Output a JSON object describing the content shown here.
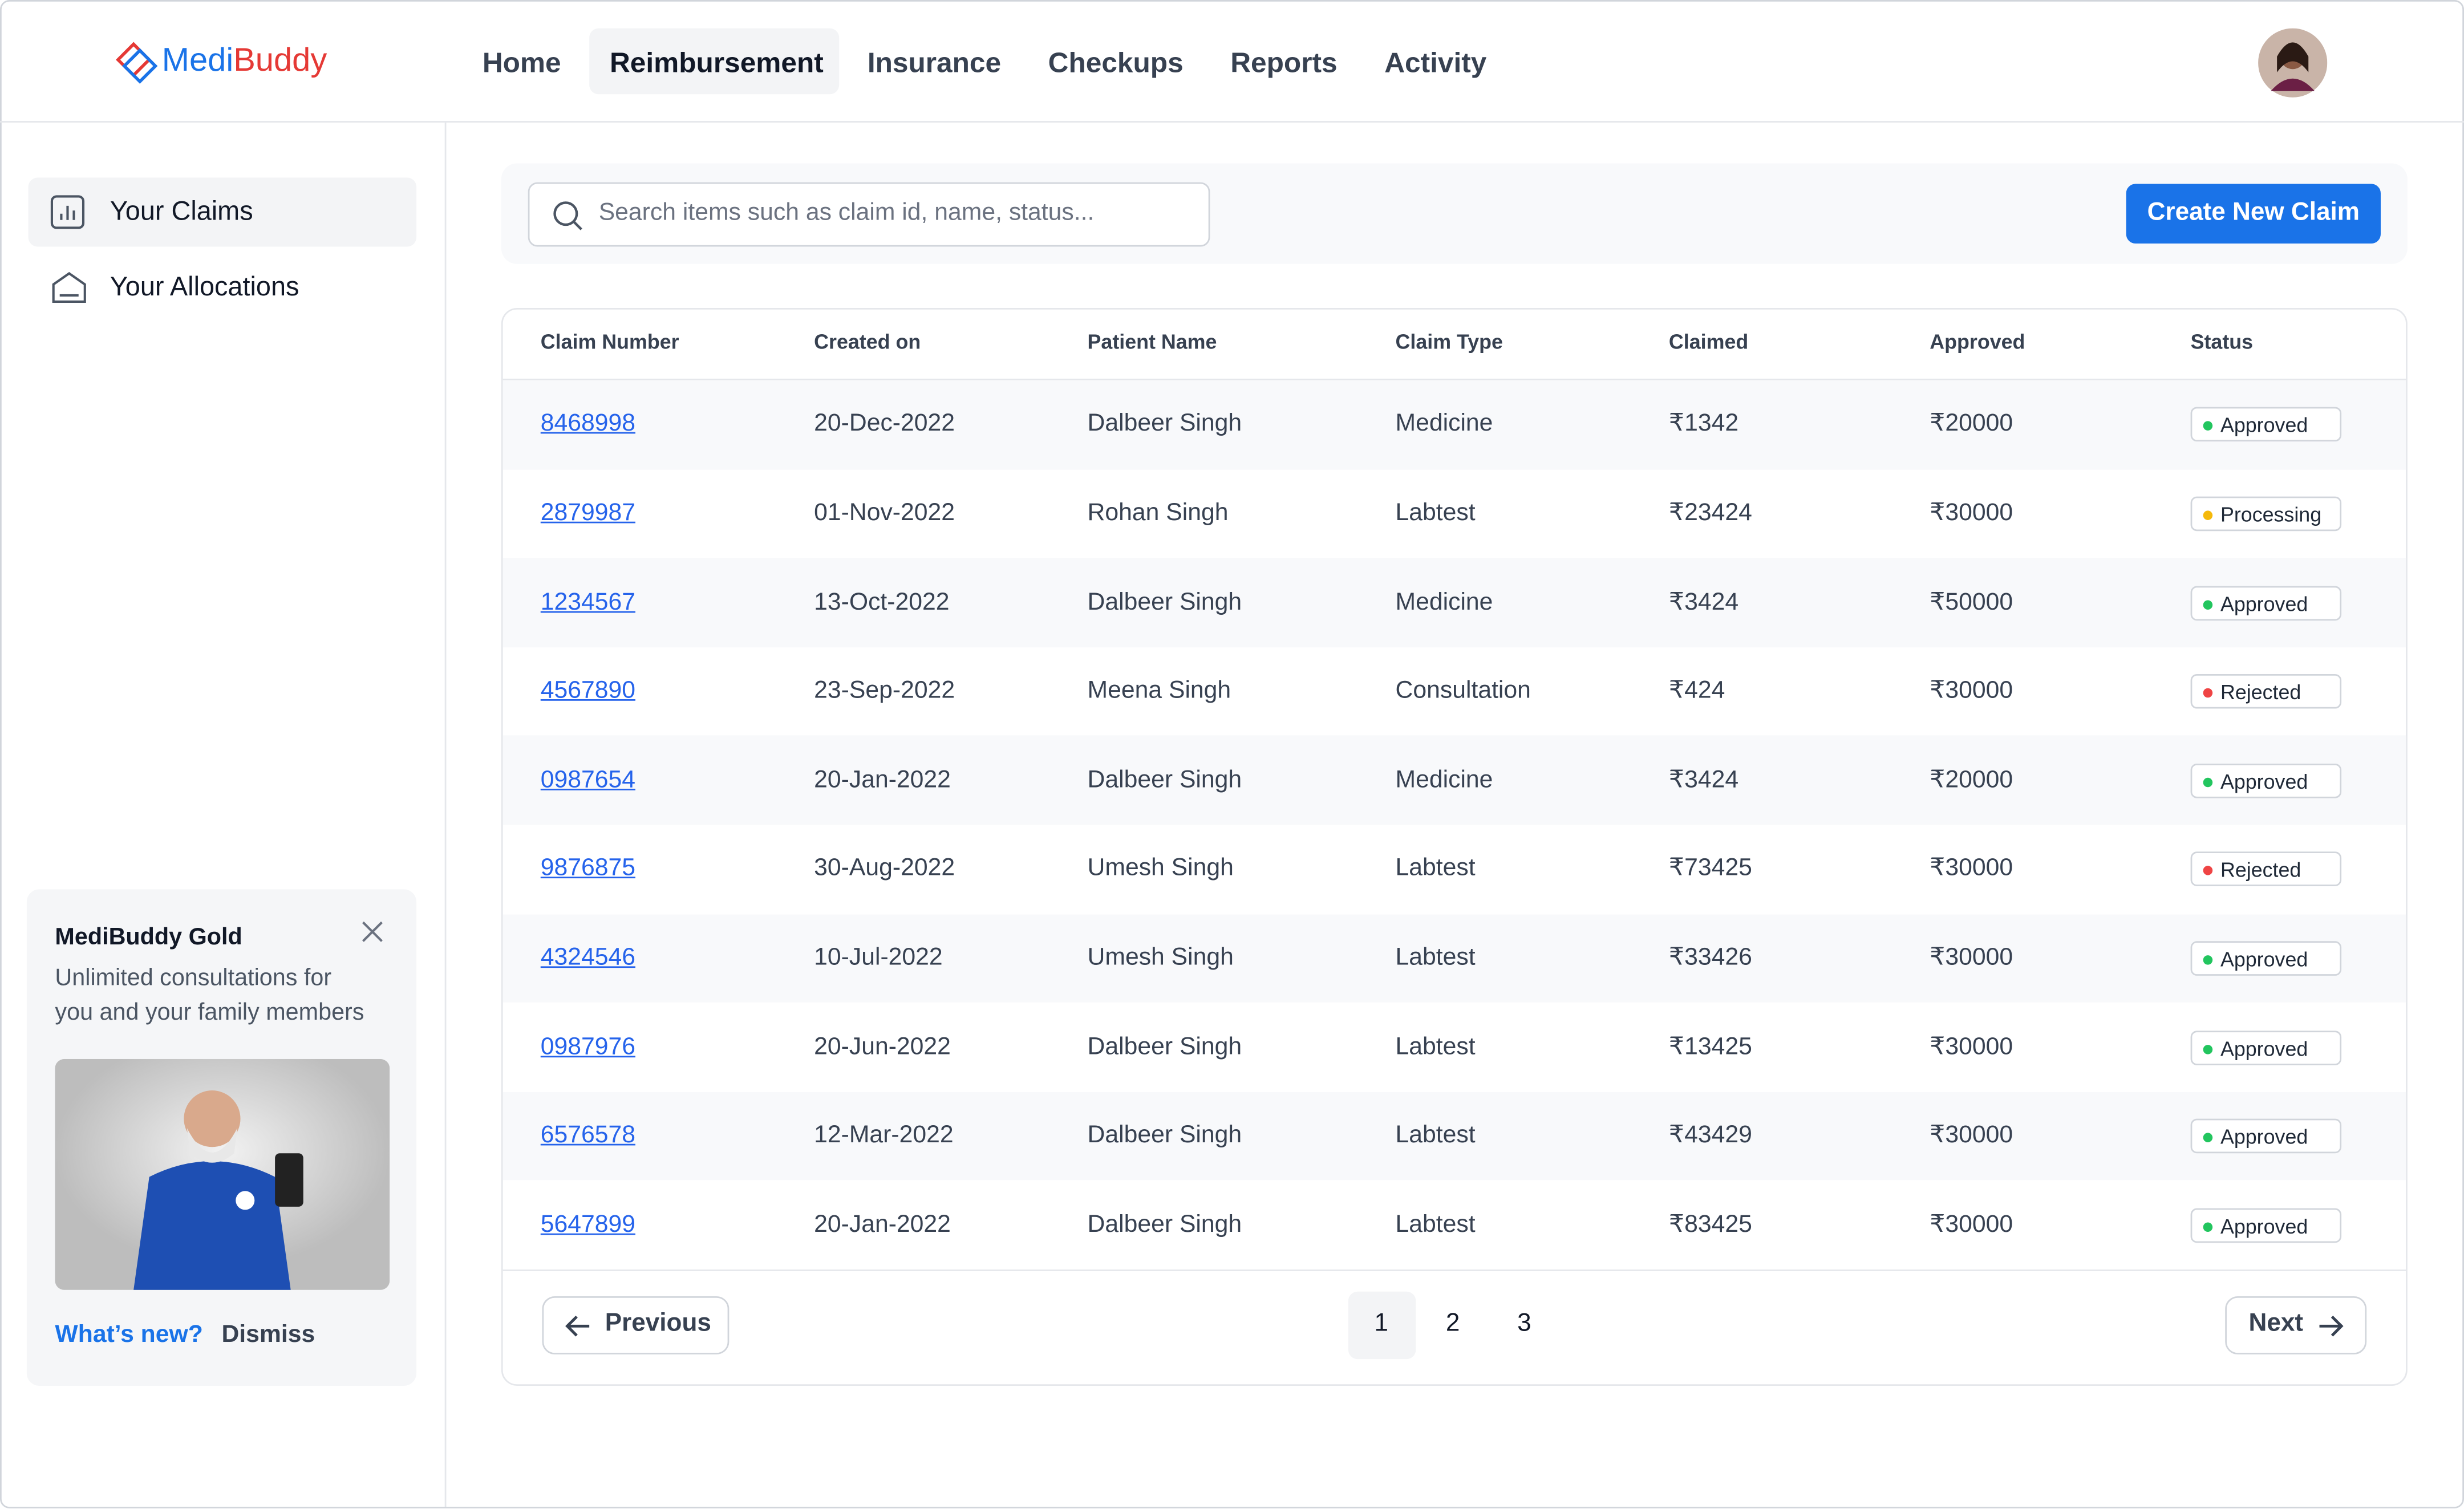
{
  "header": {
    "logo": {
      "part1": "Medi",
      "part2": "Buddy"
    },
    "nav": [
      "Home",
      "Reimbursement",
      "Insurance",
      "Checkups",
      "Reports",
      "Activity"
    ],
    "active_nav": 1
  },
  "sidebar": {
    "items": [
      "Your Claims",
      "Your Allocations"
    ],
    "promo": {
      "title": "MediBuddy Gold",
      "text_line1": "Unlimited consultations for",
      "text_line2": "you and your family members",
      "link": "What’s new?",
      "dismiss": "Dismiss"
    }
  },
  "toolbar": {
    "search_placeholder": "Search items such as claim id, name, status...",
    "button": "Create New Claim"
  },
  "table": {
    "columns": [
      "Claim Number",
      "Created on",
      "Patient Name",
      "Claim Type",
      "Claimed",
      "Approved",
      "Status"
    ],
    "rows": [
      [
        "8468998",
        "20-Dec-2022",
        "Dalbeer Singh",
        "Medicine",
        "₹1342",
        "₹20000",
        {
          "label": "Approved",
          "color": "#22c55e"
        }
      ],
      [
        "2879987",
        "01-Nov-2022",
        "Rohan Singh",
        "Labtest",
        "₹23424",
        "₹30000",
        {
          "label": "Processing",
          "color": "#f5b90b"
        }
      ],
      [
        "1234567",
        "13-Oct-2022",
        "Dalbeer Singh",
        "Medicine",
        "₹3424",
        "₹50000",
        {
          "label": "Approved",
          "color": "#22c55e"
        }
      ],
      [
        "4567890",
        "23-Sep-2022",
        "Meena Singh",
        "Consultation",
        "₹424",
        "₹30000",
        {
          "label": "Rejected",
          "color": "#ef4444"
        }
      ],
      [
        "0987654",
        "20-Jan-2022",
        "Dalbeer Singh",
        "Medicine",
        "₹3424",
        "₹20000",
        {
          "label": "Approved",
          "color": "#22c55e"
        }
      ],
      [
        "9876875",
        "30-Aug-2022",
        "Umesh Singh",
        "Labtest",
        "₹73425",
        "₹30000",
        {
          "label": "Rejected",
          "color": "#ef4444"
        }
      ],
      [
        "4324546",
        "10-Jul-2022",
        "Umesh Singh",
        "Labtest",
        "₹33426",
        "₹30000",
        {
          "label": "Approved",
          "color": "#22c55e"
        }
      ],
      [
        "0987976",
        "20-Jun-2022",
        "Dalbeer Singh",
        "Labtest",
        "₹13425",
        "₹30000",
        {
          "label": "Approved",
          "color": "#22c55e"
        }
      ],
      [
        "6576578",
        "12-Mar-2022",
        "Dalbeer Singh",
        "Labtest",
        "₹43429",
        "₹30000",
        {
          "label": "Approved",
          "color": "#22c55e"
        }
      ],
      [
        "5647899",
        "20-Jan-2022",
        "Dalbeer Singh",
        "Labtest",
        "₹83425",
        "₹30000",
        {
          "label": "Approved",
          "color": "#22c55e"
        }
      ]
    ]
  },
  "pagination": {
    "previous": "Previous",
    "pages": [
      "1",
      "2",
      "3"
    ],
    "current": 0,
    "next": "Next"
  }
}
